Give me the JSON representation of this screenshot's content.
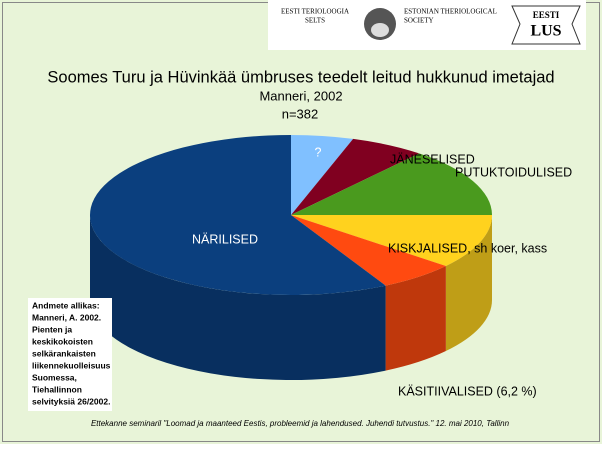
{
  "chart_data": {
    "type": "pie",
    "title": "Soomes Turu ja Hüvinkää ümbruses teedelt leitud hukkunud imetajad",
    "subtitle": "Manneri, 2002",
    "annotation": "n=382",
    "categories": [
      "?",
      "JÄNESELISED",
      "PUTUKTOIDULISED",
      "KISKJALISED, sh koer, kass",
      "KÄSITIIVALISED (6,2 %)",
      "NÄRILISED"
    ],
    "values": [
      5,
      6,
      14,
      11,
      6.2,
      57.8
    ],
    "colors": [
      "#80c0ff",
      "#800020",
      "#4a9a1e",
      "#ffd21e",
      "#ff4a10",
      "#0b3f7e"
    ],
    "header": {
      "left": [
        "EESTI TERIOLOOGIA",
        "SELTS"
      ],
      "right": [
        "ESTONIAN THERIOLOGICAL",
        "SOCIETY"
      ],
      "logo": [
        "EESTI",
        "LUS"
      ]
    },
    "source_note": [
      "Andmete allikas:",
      "Manneri, A. 2002.",
      "Pienten ja",
      "keskikokoisten",
      "selkärankaisten",
      "liikennekuolleisuus",
      "Suomessa,",
      "Tiehallinnon",
      "selvityksiä 26/2002."
    ],
    "footer": "Ettekanne seminaril \"Loomad ja maanteed Eestis, probleemid ja lahendused. Juhendi tutvustus.\" 12. mai 2010, Tallinn"
  }
}
